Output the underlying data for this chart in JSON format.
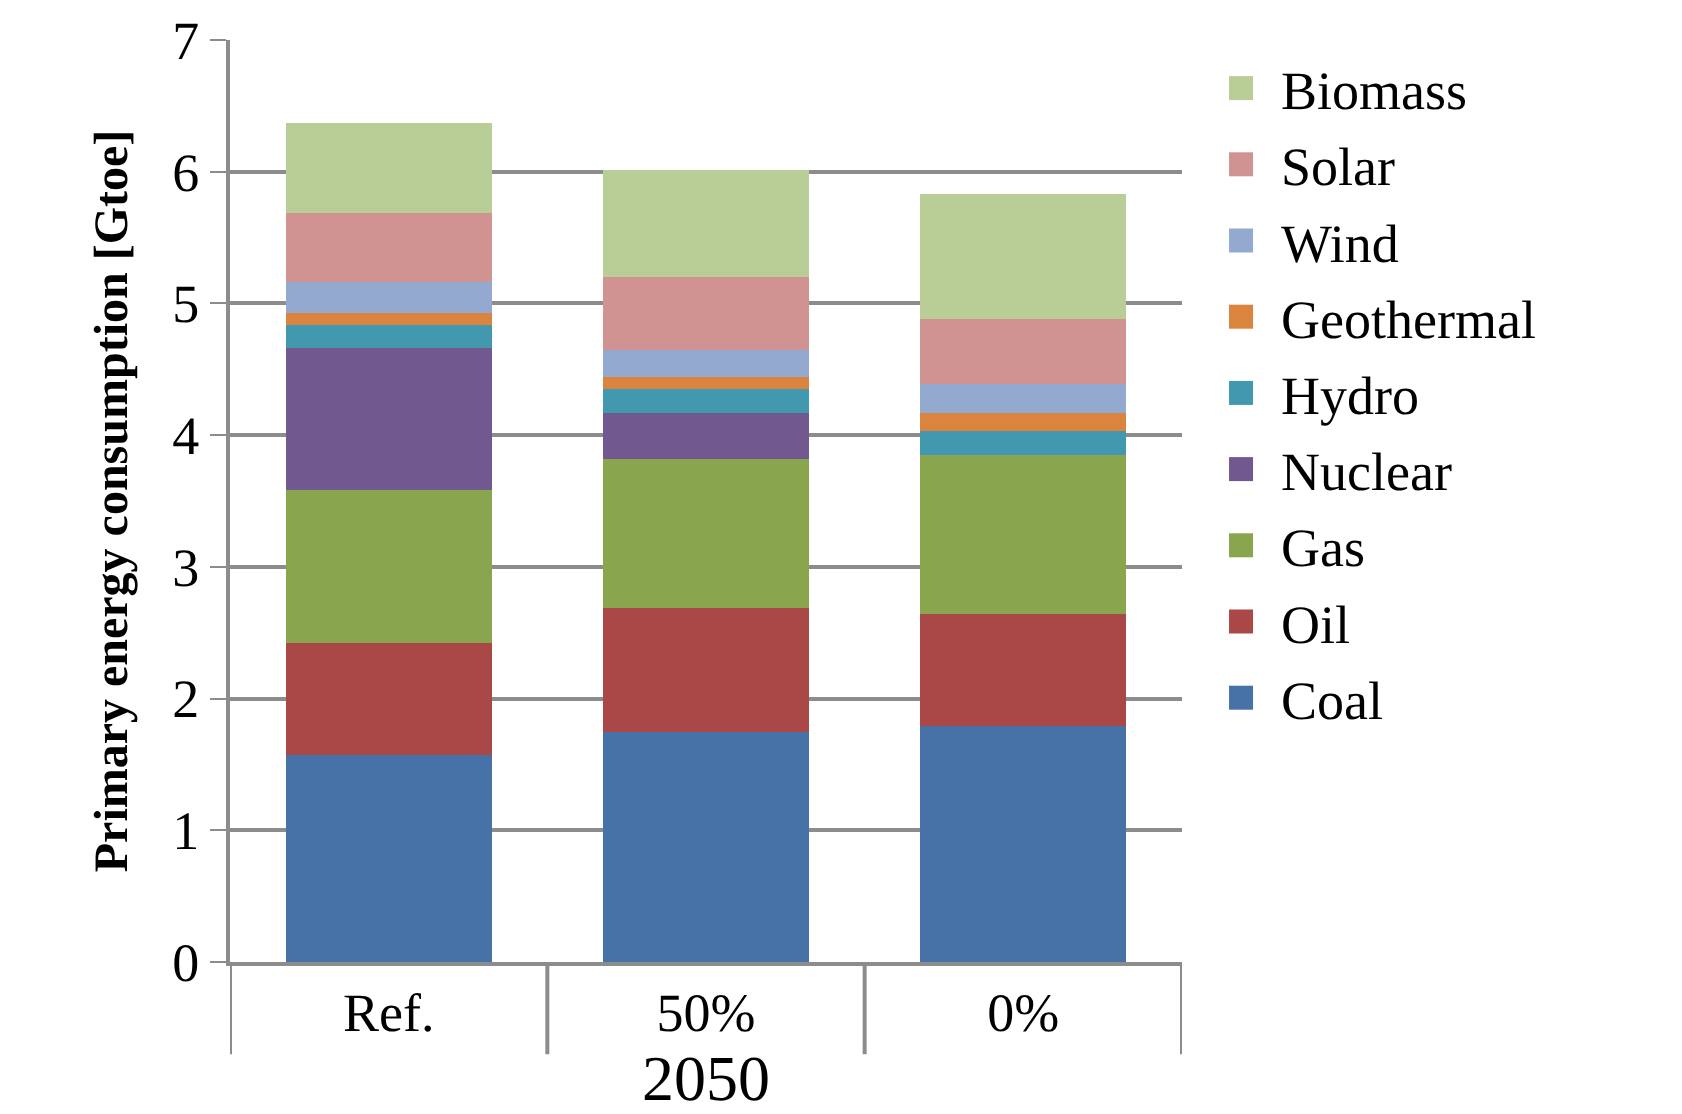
{
  "chart_data": {
    "type": "bar",
    "stacked": true,
    "ylabel": "Primary energy consumption [Gtoe]",
    "xlabel": "2050",
    "categories": [
      "Ref.",
      "50%",
      "0%"
    ],
    "series": [
      {
        "name": "Coal",
        "color": "#4672a8",
        "values": [
          1.57,
          1.75,
          1.79
        ]
      },
      {
        "name": "Oil",
        "color": "#a94846",
        "values": [
          0.85,
          0.94,
          0.85
        ]
      },
      {
        "name": "Gas",
        "color": "#89a54e",
        "values": [
          1.16,
          1.13,
          1.21
        ]
      },
      {
        "name": "Nuclear",
        "color": "#71588f",
        "values": [
          1.08,
          0.35,
          0
        ]
      },
      {
        "name": "Hydro",
        "color": "#4198af",
        "values": [
          0.18,
          0.18,
          0.18
        ]
      },
      {
        "name": "Geothermal",
        "color": "#db843d",
        "values": [
          0.09,
          0.09,
          0.14
        ]
      },
      {
        "name": "Wind",
        "color": "#93a9cf",
        "values": [
          0.23,
          0.21,
          0.22
        ]
      },
      {
        "name": "Solar",
        "color": "#d19392",
        "values": [
          0.53,
          0.55,
          0.49
        ]
      },
      {
        "name": "Biomass",
        "color": "#b9cd96",
        "values": [
          0.68,
          0.81,
          0.95
        ]
      }
    ],
    "ylim": [
      0,
      7
    ],
    "yticks": [
      0,
      1,
      2,
      3,
      4,
      5,
      6,
      7
    ],
    "grid": "y",
    "legend": "right"
  }
}
